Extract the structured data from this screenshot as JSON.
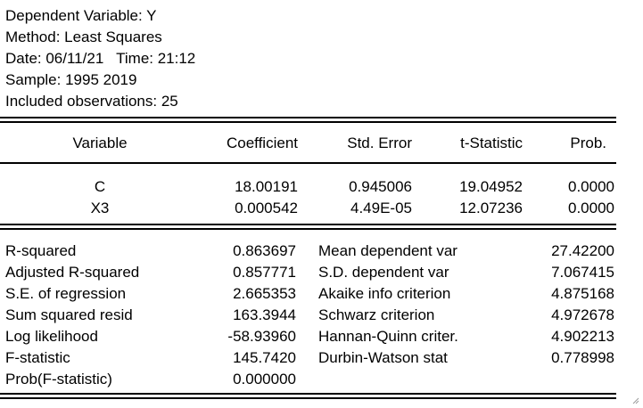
{
  "header": {
    "dependent_variable": "Dependent Variable: Y",
    "method": "Method: Least Squares",
    "date": "Date: 06/11/21   Time: 21:12",
    "sample": "Sample: 1995 2019",
    "observations": "Included observations: 25"
  },
  "coef_table": {
    "columns": [
      "Variable",
      "Coefficient",
      "Std. Error",
      "t-Statistic",
      "Prob."
    ],
    "rows": [
      [
        "C",
        "18.00191",
        "0.945006",
        "19.04952",
        "0.0000"
      ],
      [
        "X3",
        "0.000542",
        "4.49E-05",
        "12.07236",
        "0.0000"
      ]
    ]
  },
  "stats": {
    "left": [
      [
        "R-squared",
        "0.863697"
      ],
      [
        "Adjusted R-squared",
        "0.857771"
      ],
      [
        "S.E. of regression",
        "2.665353"
      ],
      [
        "Sum squared resid",
        "163.3944"
      ],
      [
        "Log likelihood",
        "-58.93960"
      ],
      [
        "F-statistic",
        "145.7420"
      ],
      [
        "Prob(F-statistic)",
        "0.000000"
      ]
    ],
    "right": [
      [
        "Mean dependent var",
        "27.42200"
      ],
      [
        "S.D. dependent var",
        "7.067415"
      ],
      [
        "Akaike info criterion",
        "4.875168"
      ],
      [
        "Schwarz criterion",
        "4.972678"
      ],
      [
        "Hannan-Quinn criter.",
        "4.902213"
      ],
      [
        "Durbin-Watson stat",
        "0.778998"
      ]
    ]
  },
  "icons": {
    "resize_grip": "resize-grip-icon"
  }
}
